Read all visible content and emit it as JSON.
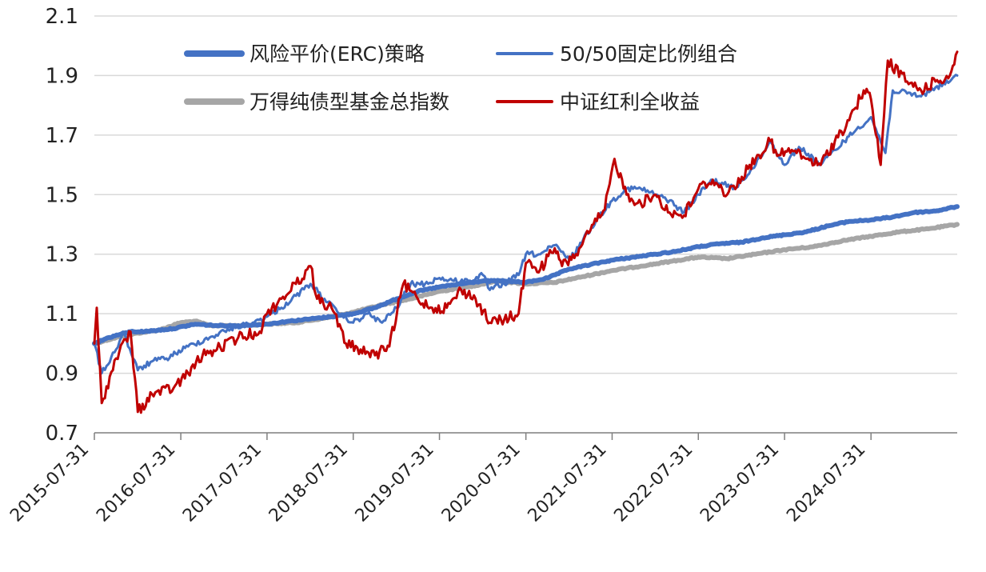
{
  "chart_data": {
    "type": "line",
    "title": "",
    "xlabel": "",
    "ylabel": "",
    "ylim": [
      0.7,
      2.1
    ],
    "y_ticks": [
      "0.7",
      "0.9",
      "1.1",
      "1.3",
      "1.5",
      "1.7",
      "1.9",
      "2.1"
    ],
    "x_range": [
      "2015-07-31",
      "2025-07-31"
    ],
    "x_ticks": [
      "2015-07-31",
      "2016-07-31",
      "2017-07-31",
      "2018-07-31",
      "2019-07-31",
      "2020-07-31",
      "2021-07-31",
      "2022-07-31",
      "2023-07-31",
      "2024-07-31"
    ],
    "grid": "horizontal",
    "legend_position": "top",
    "series": [
      {
        "name": "风险平价(ERC)策略",
        "color": "#4472c4",
        "width": "thick",
        "points": [
          [
            "2015-07-31",
            1.0
          ],
          [
            "2015-09-30",
            1.02
          ],
          [
            "2015-12-31",
            1.04
          ],
          [
            "2016-02-29",
            1.04
          ],
          [
            "2016-06-30",
            1.05
          ],
          [
            "2016-09-30",
            1.065
          ],
          [
            "2016-12-31",
            1.06
          ],
          [
            "2017-03-31",
            1.06
          ],
          [
            "2017-07-31",
            1.065
          ],
          [
            "2017-10-31",
            1.075
          ],
          [
            "2017-12-31",
            1.08
          ],
          [
            "2018-04-30",
            1.09
          ],
          [
            "2018-07-31",
            1.1
          ],
          [
            "2018-10-31",
            1.12
          ],
          [
            "2019-01-31",
            1.15
          ],
          [
            "2019-04-30",
            1.175
          ],
          [
            "2019-07-31",
            1.19
          ],
          [
            "2019-10-31",
            1.2
          ],
          [
            "2020-01-31",
            1.21
          ],
          [
            "2020-04-30",
            1.21
          ],
          [
            "2020-07-31",
            1.205
          ],
          [
            "2020-10-31",
            1.22
          ],
          [
            "2021-01-31",
            1.25
          ],
          [
            "2021-04-30",
            1.265
          ],
          [
            "2021-07-31",
            1.28
          ],
          [
            "2021-10-31",
            1.29
          ],
          [
            "2022-01-31",
            1.3
          ],
          [
            "2022-04-30",
            1.31
          ],
          [
            "2022-07-31",
            1.325
          ],
          [
            "2022-10-31",
            1.335
          ],
          [
            "2023-01-31",
            1.34
          ],
          [
            "2023-04-30",
            1.355
          ],
          [
            "2023-07-31",
            1.365
          ],
          [
            "2023-10-31",
            1.375
          ],
          [
            "2024-01-31",
            1.395
          ],
          [
            "2024-04-30",
            1.41
          ],
          [
            "2024-07-31",
            1.415
          ],
          [
            "2024-10-31",
            1.425
          ],
          [
            "2025-01-31",
            1.44
          ],
          [
            "2025-04-30",
            1.445
          ],
          [
            "2025-07-31",
            1.46
          ]
        ]
      },
      {
        "name": "50/50固定比例组合",
        "color": "#4472c4",
        "width": "thin",
        "points": [
          [
            "2015-07-31",
            1.0
          ],
          [
            "2015-08-31",
            0.9
          ],
          [
            "2015-10-31",
            0.98
          ],
          [
            "2015-11-30",
            1.04
          ],
          [
            "2016-01-31",
            0.91
          ],
          [
            "2016-03-31",
            0.94
          ],
          [
            "2016-05-31",
            0.95
          ],
          [
            "2016-08-31",
            0.99
          ],
          [
            "2016-11-30",
            1.02
          ],
          [
            "2017-02-28",
            1.05
          ],
          [
            "2017-05-31",
            1.07
          ],
          [
            "2017-07-31",
            1.09
          ],
          [
            "2017-09-30",
            1.12
          ],
          [
            "2017-11-30",
            1.16
          ],
          [
            "2018-01-31",
            1.2
          ],
          [
            "2018-03-31",
            1.15
          ],
          [
            "2018-05-31",
            1.1
          ],
          [
            "2018-07-31",
            1.07
          ],
          [
            "2018-09-30",
            1.1
          ],
          [
            "2018-11-30",
            1.07
          ],
          [
            "2019-01-31",
            1.12
          ],
          [
            "2019-03-31",
            1.2
          ],
          [
            "2019-05-31",
            1.2
          ],
          [
            "2019-07-31",
            1.22
          ],
          [
            "2019-09-30",
            1.21
          ],
          [
            "2019-11-30",
            1.21
          ],
          [
            "2020-01-31",
            1.23
          ],
          [
            "2020-02-29",
            1.18
          ],
          [
            "2020-04-30",
            1.2
          ],
          [
            "2020-06-30",
            1.23
          ],
          [
            "2020-07-31",
            1.3
          ],
          [
            "2020-09-30",
            1.3
          ],
          [
            "2020-11-30",
            1.33
          ],
          [
            "2021-01-31",
            1.28
          ],
          [
            "2021-03-31",
            1.35
          ],
          [
            "2021-05-31",
            1.42
          ],
          [
            "2021-07-31",
            1.48
          ],
          [
            "2021-09-30",
            1.52
          ],
          [
            "2021-11-30",
            1.52
          ],
          [
            "2022-01-31",
            1.5
          ],
          [
            "2022-03-31",
            1.48
          ],
          [
            "2022-05-31",
            1.44
          ],
          [
            "2022-07-31",
            1.5
          ],
          [
            "2022-09-30",
            1.55
          ],
          [
            "2022-12-31",
            1.52
          ],
          [
            "2023-03-31",
            1.6
          ],
          [
            "2023-05-31",
            1.68
          ],
          [
            "2023-07-31",
            1.6
          ],
          [
            "2023-09-30",
            1.66
          ],
          [
            "2023-12-31",
            1.6
          ],
          [
            "2024-02-29",
            1.65
          ],
          [
            "2024-05-31",
            1.72
          ],
          [
            "2024-07-31",
            1.76
          ],
          [
            "2024-09-30",
            1.64
          ],
          [
            "2024-10-31",
            1.85
          ],
          [
            "2024-12-31",
            1.84
          ],
          [
            "2025-02-28",
            1.83
          ],
          [
            "2025-04-30",
            1.86
          ],
          [
            "2025-06-30",
            1.88
          ],
          [
            "2025-07-31",
            1.9
          ]
        ]
      },
      {
        "name": "万得纯债型基金总指数",
        "color": "#a6a6a6",
        "width": "thick",
        "points": [
          [
            "2015-07-31",
            1.0
          ],
          [
            "2015-10-31",
            1.02
          ],
          [
            "2016-01-31",
            1.035
          ],
          [
            "2016-04-30",
            1.045
          ],
          [
            "2016-07-31",
            1.07
          ],
          [
            "2016-09-30",
            1.075
          ],
          [
            "2016-11-30",
            1.06
          ],
          [
            "2017-03-31",
            1.06
          ],
          [
            "2017-07-31",
            1.065
          ],
          [
            "2017-11-30",
            1.07
          ],
          [
            "2018-03-31",
            1.085
          ],
          [
            "2018-07-31",
            1.105
          ],
          [
            "2018-11-30",
            1.13
          ],
          [
            "2019-03-31",
            1.15
          ],
          [
            "2019-07-31",
            1.175
          ],
          [
            "2019-11-30",
            1.19
          ],
          [
            "2020-03-31",
            1.21
          ],
          [
            "2020-07-31",
            1.2
          ],
          [
            "2020-11-30",
            1.205
          ],
          [
            "2021-03-31",
            1.225
          ],
          [
            "2021-07-31",
            1.245
          ],
          [
            "2021-11-30",
            1.26
          ],
          [
            "2022-03-31",
            1.275
          ],
          [
            "2022-07-31",
            1.29
          ],
          [
            "2022-11-30",
            1.285
          ],
          [
            "2023-03-31",
            1.3
          ],
          [
            "2023-07-31",
            1.315
          ],
          [
            "2023-11-30",
            1.325
          ],
          [
            "2024-03-31",
            1.345
          ],
          [
            "2024-07-31",
            1.36
          ],
          [
            "2024-11-30",
            1.375
          ],
          [
            "2025-03-31",
            1.385
          ],
          [
            "2025-07-31",
            1.4
          ]
        ]
      },
      {
        "name": "中证红利全收益",
        "color": "#c00000",
        "width": "thin",
        "points": [
          [
            "2015-07-31",
            1.0
          ],
          [
            "2015-08-10",
            1.12
          ],
          [
            "2015-08-31",
            0.8
          ],
          [
            "2015-10-31",
            0.95
          ],
          [
            "2015-12-31",
            1.04
          ],
          [
            "2016-01-31",
            0.77
          ],
          [
            "2016-03-31",
            0.83
          ],
          [
            "2016-06-30",
            0.85
          ],
          [
            "2016-08-31",
            0.9
          ],
          [
            "2016-10-31",
            0.96
          ],
          [
            "2016-12-31",
            0.98
          ],
          [
            "2017-03-31",
            1.02
          ],
          [
            "2017-06-30",
            1.04
          ],
          [
            "2017-07-31",
            1.1
          ],
          [
            "2017-09-30",
            1.15
          ],
          [
            "2017-11-30",
            1.2
          ],
          [
            "2018-01-31",
            1.26
          ],
          [
            "2018-02-28",
            1.15
          ],
          [
            "2018-04-30",
            1.12
          ],
          [
            "2018-06-30",
            1.0
          ],
          [
            "2018-08-31",
            0.98
          ],
          [
            "2018-10-31",
            0.96
          ],
          [
            "2018-12-31",
            0.99
          ],
          [
            "2019-02-28",
            1.2
          ],
          [
            "2019-04-30",
            1.15
          ],
          [
            "2019-06-30",
            1.12
          ],
          [
            "2019-08-31",
            1.12
          ],
          [
            "2019-10-31",
            1.18
          ],
          [
            "2019-12-31",
            1.15
          ],
          [
            "2020-02-29",
            1.07
          ],
          [
            "2020-04-30",
            1.08
          ],
          [
            "2020-06-30",
            1.1
          ],
          [
            "2020-07-31",
            1.27
          ],
          [
            "2020-09-30",
            1.25
          ],
          [
            "2020-11-30",
            1.32
          ],
          [
            "2020-12-31",
            1.26
          ],
          [
            "2021-02-28",
            1.3
          ],
          [
            "2021-04-30",
            1.38
          ],
          [
            "2021-06-30",
            1.45
          ],
          [
            "2021-08-10",
            1.62
          ],
          [
            "2021-09-30",
            1.5
          ],
          [
            "2021-11-30",
            1.47
          ],
          [
            "2022-01-31",
            1.5
          ],
          [
            "2022-03-31",
            1.44
          ],
          [
            "2022-05-31",
            1.43
          ],
          [
            "2022-07-31",
            1.52
          ],
          [
            "2022-09-30",
            1.55
          ],
          [
            "2022-11-30",
            1.5
          ],
          [
            "2023-01-31",
            1.56
          ],
          [
            "2023-03-31",
            1.62
          ],
          [
            "2023-05-31",
            1.68
          ],
          [
            "2023-06-30",
            1.63
          ],
          [
            "2023-08-31",
            1.65
          ],
          [
            "2023-10-31",
            1.62
          ],
          [
            "2023-12-31",
            1.6
          ],
          [
            "2024-02-29",
            1.68
          ],
          [
            "2024-04-30",
            1.75
          ],
          [
            "2024-06-30",
            1.85
          ],
          [
            "2024-07-31",
            1.82
          ],
          [
            "2024-09-10",
            1.6
          ],
          [
            "2024-10-10",
            1.95
          ],
          [
            "2024-12-31",
            1.88
          ],
          [
            "2025-02-28",
            1.85
          ],
          [
            "2025-04-30",
            1.88
          ],
          [
            "2025-06-30",
            1.9
          ],
          [
            "2025-07-31",
            1.98
          ]
        ]
      }
    ]
  }
}
